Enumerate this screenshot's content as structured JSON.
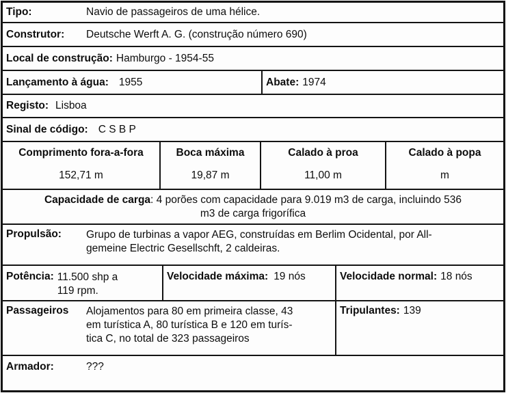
{
  "colors": {
    "border": "#131313",
    "background": "#fdfdfd",
    "text": "#0d0d0d"
  },
  "rows": {
    "tipo": {
      "label": "Tipo:",
      "value": "Navio de passageiros de uma hélice."
    },
    "construtor": {
      "label": "Construtor:",
      "value": "Deutsche Werft A. G. (construção número 690)"
    },
    "local": {
      "label": "Local de construção:",
      "value": "Hamburgo - 1954-55"
    },
    "lancamento": {
      "label": "Lançamento à água:",
      "value": "1955"
    },
    "abate": {
      "label": "Abate:",
      "value": "1974"
    },
    "registo": {
      "label": "Registo:",
      "value": "Lisboa"
    },
    "sinal": {
      "label": "Sinal de código:",
      "value": "C S B P"
    },
    "dimensoes": {
      "columns": [
        {
          "header": "Comprimento fora-a-fora",
          "value": "152,71 m"
        },
        {
          "header": "Boca máxima",
          "value": "19,87 m"
        },
        {
          "header": "Calado à proa",
          "value": "11,00 m"
        },
        {
          "header": "Calado à popa",
          "value": "m"
        }
      ]
    },
    "capacidade": {
      "label": "Capacidade de carga",
      "value": ": 4 porões com capacidade para 9.019 m3 de carga, incluindo 536\nm3 de carga frigorífica"
    },
    "propulsao": {
      "label": "Propulsão:",
      "value": "Grupo de turbinas a vapor AEG, construídas em Berlim Ocidental, por All-\ngemeine Electric Gesellschft, 2 caldeiras."
    },
    "potencia": {
      "label": "Potência:",
      "value": "11.500 shp a\n119 rpm."
    },
    "velocidade_maxima": {
      "label": "Velocidade máxima:",
      "value": "19 nós"
    },
    "velocidade_normal": {
      "label": "Velocidade normal:",
      "value": "18 nós"
    },
    "passageiros": {
      "label": "Passageiros",
      "value": "Alojamentos para 80 em primeira classe, 43\nem turística A, 80 turística B e 120 em turís-\ntica C, no total de 323 passageiros"
    },
    "tripulantes": {
      "label": "Tripulantes:",
      "value": "139"
    },
    "armador": {
      "label": "Armador:",
      "value": "???"
    }
  }
}
